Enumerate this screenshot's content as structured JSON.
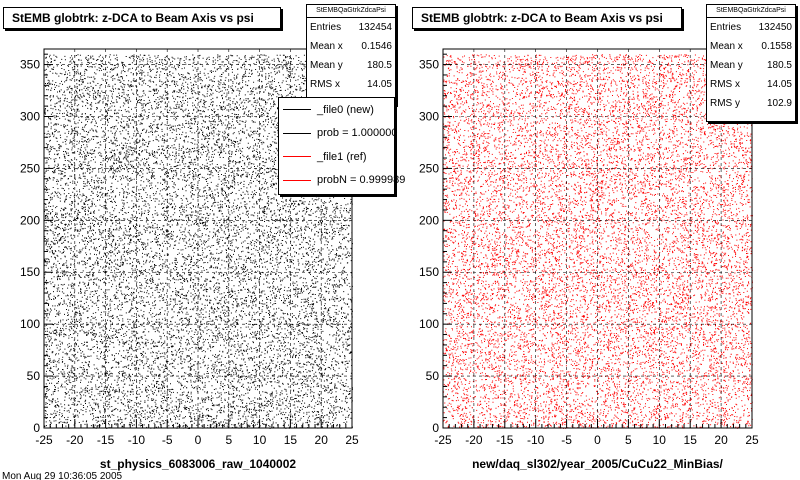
{
  "chart_data": [
    {
      "type": "scatter",
      "title": "StEMB globtrk: z-DCA to Beam Axis vs psi",
      "xlabel": "st_physics_6083006_raw_1040002",
      "ylabel": "",
      "xlim": [
        -25,
        25
      ],
      "ylim": [
        0,
        365
      ],
      "xticks": [
        -25,
        -20,
        -15,
        -10,
        -5,
        0,
        5,
        10,
        15,
        20,
        25
      ],
      "yticks": [
        0,
        50,
        100,
        150,
        200,
        250,
        300,
        350
      ],
      "marker_color": "#000000",
      "distribution": "uniform dense points over full range",
      "stats": {
        "name": "StEMBQaGtrkZdcaPsi",
        "rows": [
          {
            "label": "Entries",
            "value": "132454"
          },
          {
            "label": "Mean x",
            "value": "0.1546"
          },
          {
            "label": "Mean y",
            "value": "180.5"
          },
          {
            "label": "RMS x",
            "value": "14.05"
          }
        ]
      },
      "legend": [
        {
          "label": "_file0 (new)",
          "color": "#000000"
        },
        {
          "label": "prob = 1.000000",
          "color": "#000000"
        },
        {
          "label": "_file1 (ref)",
          "color": "#ff0000"
        },
        {
          "label": "probN = 0.999989",
          "color": "#ff0000"
        }
      ]
    },
    {
      "type": "scatter",
      "title": "StEMB globtrk: z-DCA to Beam Axis vs psi",
      "xlabel": "new/daq_sl302/year_2005/CuCu22_MinBias/",
      "ylabel": "",
      "xlim": [
        -25,
        25
      ],
      "ylim": [
        0,
        365
      ],
      "xticks": [
        -25,
        -20,
        -15,
        -10,
        -5,
        0,
        5,
        10,
        15,
        20,
        25
      ],
      "yticks": [
        0,
        50,
        100,
        150,
        200,
        250,
        300,
        350
      ],
      "marker_color": "#ff0000",
      "distribution": "uniform dense points over full range",
      "stats": {
        "name": "StEMBQaGtrkZdcaPsi",
        "rows": [
          {
            "label": "Entries",
            "value": "132450"
          },
          {
            "label": "Mean x",
            "value": "0.1558"
          },
          {
            "label": "Mean y",
            "value": "180.5"
          },
          {
            "label": "RMS x",
            "value": "14.05"
          },
          {
            "label": "RMS y",
            "value": "102.9"
          }
        ]
      }
    }
  ],
  "footer_text": "Mon Aug 29 10:36:05 2005"
}
